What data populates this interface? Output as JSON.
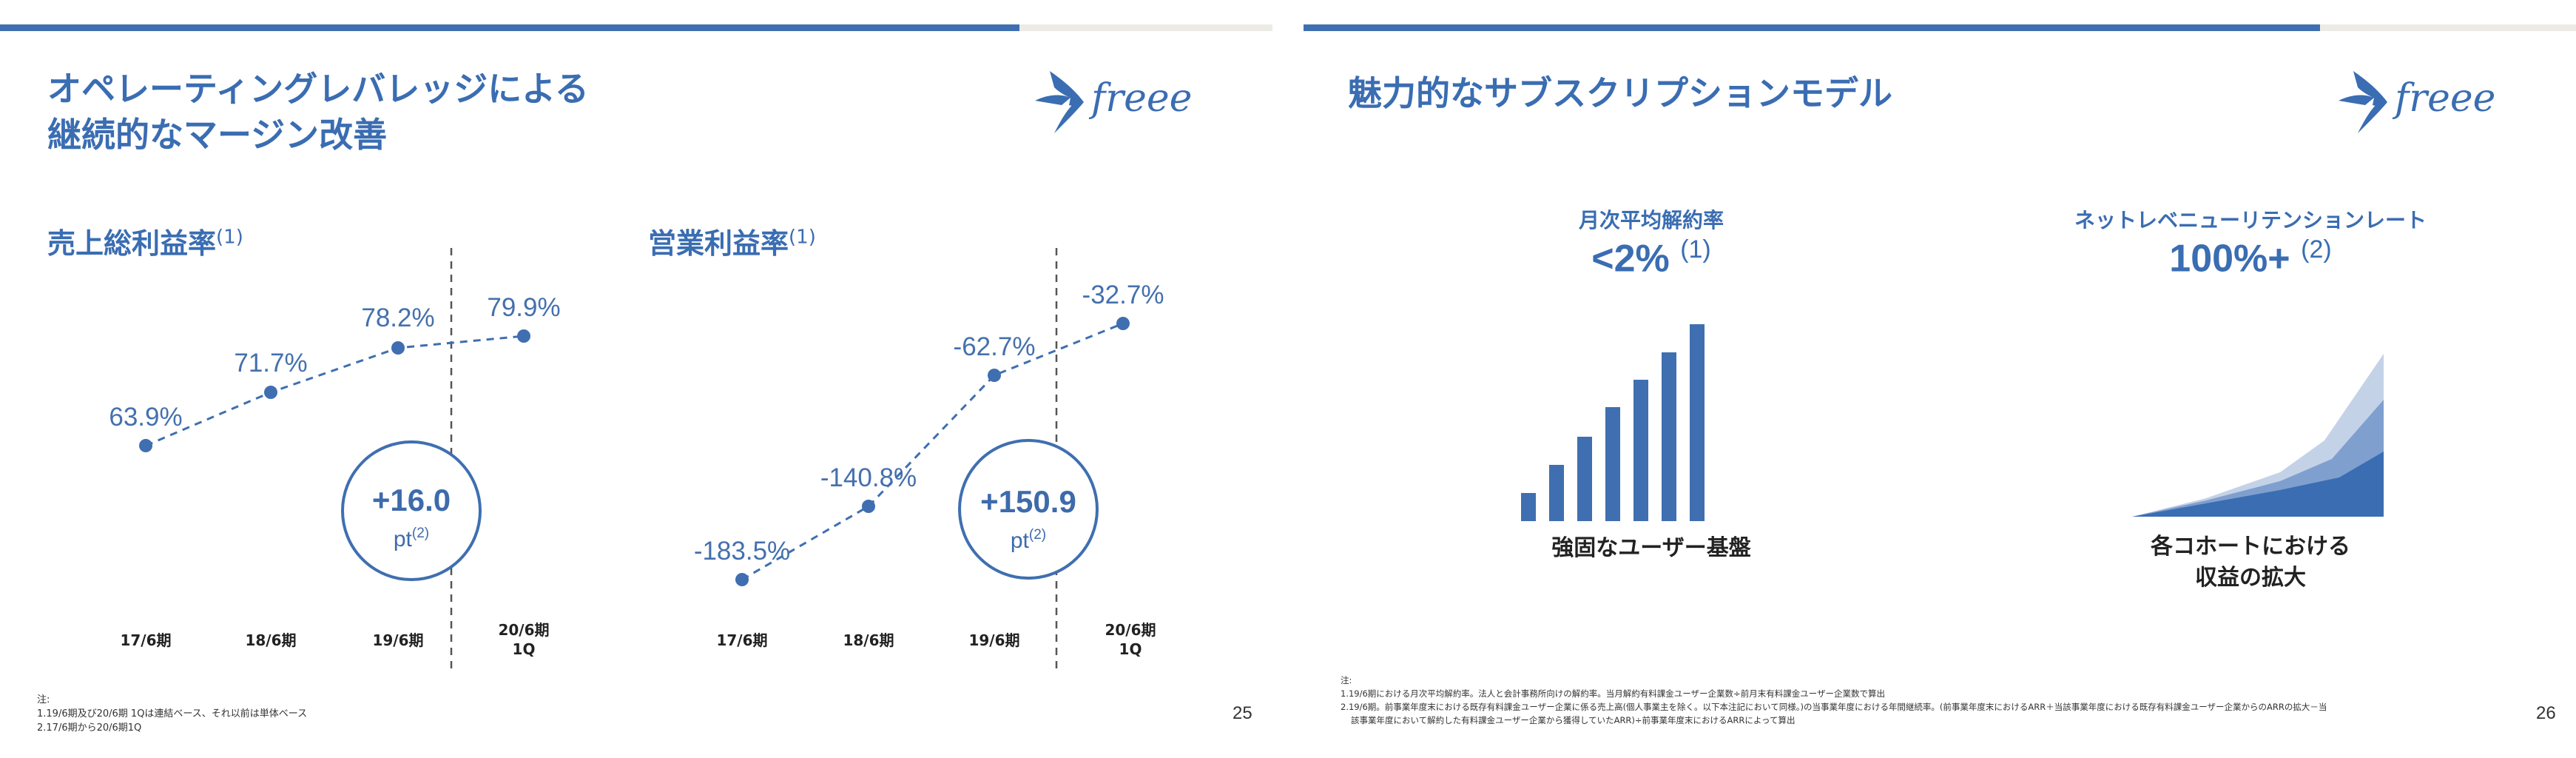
{
  "brand": {
    "accent": "#3f6fb0",
    "track": "#ecebe6",
    "text": "#3a6db2",
    "logo_text": "freee"
  },
  "slide25": {
    "title_line1": "オペレーティングレバレッジによる",
    "title_line2": "継続的なマージン改善",
    "gross": {
      "label": "売上総利益率",
      "sup": "(1)",
      "points": [
        "63.9%",
        "71.7%",
        "78.2%",
        "79.9%"
      ],
      "x_labels": [
        "17/6期",
        "18/6期",
        "19/6期",
        "20/6期",
        "1Q"
      ],
      "delta_value": "+16.0",
      "delta_unit": "pt",
      "delta_sup": "(2)"
    },
    "operating": {
      "label": "営業利益率",
      "sup": "(1)",
      "points": [
        "-183.5%",
        "-140.8%",
        "-62.7%",
        "-32.7%"
      ],
      "x_labels": [
        "17/6期",
        "18/6期",
        "19/6期",
        "20/6期",
        "1Q"
      ],
      "delta_value": "+150.9",
      "delta_unit": "pt",
      "delta_sup": "(2)"
    },
    "notes_head": "注:",
    "note1": "1.19/6期及び20/6期 1Qは連結ベース、それ以前は単体ベース",
    "note2": "2.17/6期から20/6期1Q",
    "page_number": "25"
  },
  "slide26": {
    "title": "魅力的なサブスクリプションモデル",
    "churn": {
      "label": "月次平均解約率",
      "value": "<2%",
      "sup": "(1)",
      "caption": "強固なユーザー基盤"
    },
    "nrr": {
      "label": "ネットレベニューリテンションレート",
      "value": "100%+",
      "sup": "(2)",
      "caption_line1": "各コホートにおける",
      "caption_line2": "収益の拡大"
    },
    "notes_head": "注:",
    "note1": "1.19/6期における月次平均解約率。法人と会計事務所向けの解約率。当月解約有料課金ユーザー企業数÷前月末有料課金ユーザー企業数で算出",
    "note2": "2.19/6期。前事業年度末における既存有料課金ユーザー企業に係る売上高(個人事業主を除く。以下本注記において同様。)の当事業年度における年間継続率。(前事業年度末におけるARR＋当該事業年度における既存有料課金ユーザー企業からのARRの拡大－当",
    "note3": "該事業年度において解約した有料課金ユーザー企業から獲得していたARR)÷前事業年度末におけるARRによって算出",
    "page_number": "26"
  }
}
